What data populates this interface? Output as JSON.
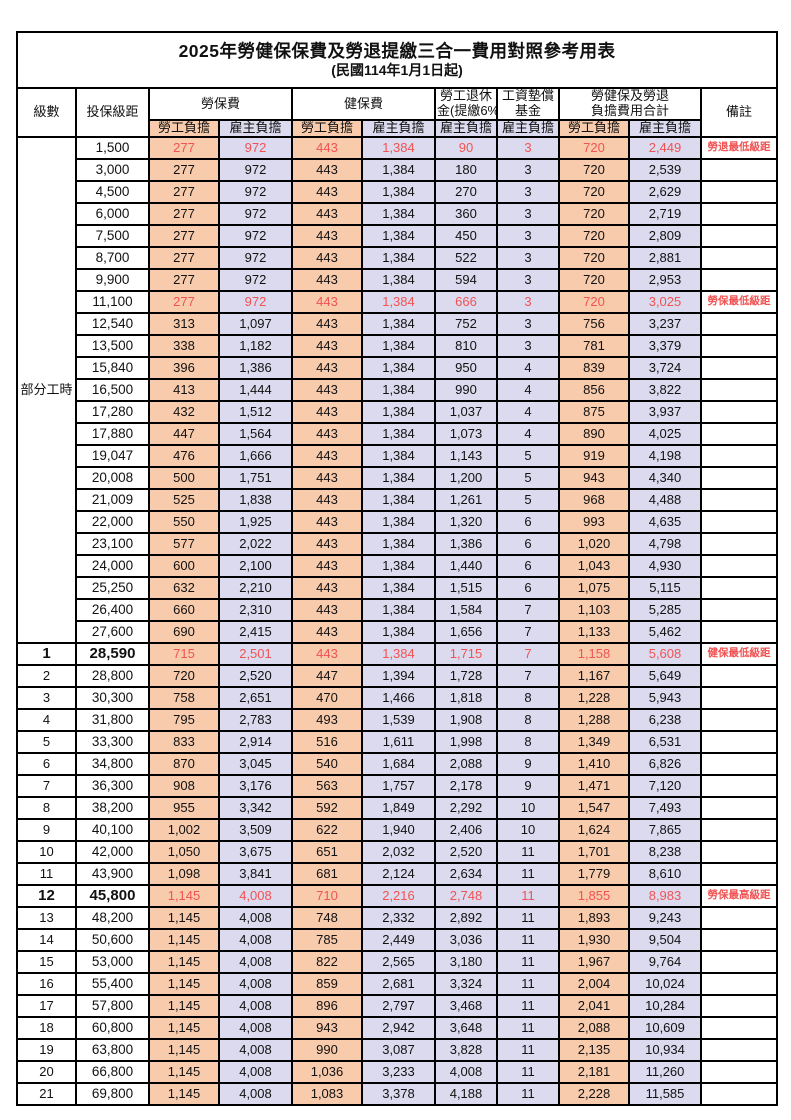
{
  "title": "2025年勞健保保費及勞退提繳三合一費用對照參考用表",
  "subtitle": "(民國114年1月1日起)",
  "colors": {
    "employee_bg": "#f8cbad",
    "employer_bg": "#dcdaee",
    "highlight_red": "#f15353",
    "border": "#000000"
  },
  "header": {
    "level": "級數",
    "bracket": "投保級距",
    "labor_insurance": "勞保費",
    "health_insurance": "健保費",
    "pension_line1": "勞工退休",
    "pension_line2": "金(提繳6%)",
    "wage_fund_line1": "工資墊償",
    "wage_fund_line2": "基金",
    "total_line1": "勞健保及勞退",
    "total_line2": "負擔費用合計",
    "employee": "勞工負擔",
    "employer": "雇主負擔",
    "remarks": "備註"
  },
  "part_time": {
    "label": "部分工時",
    "rowspan": 23
  },
  "rows": [
    {
      "bracket": "1,500",
      "values": [
        "277",
        "972",
        "443",
        "1,384",
        "90",
        "3",
        "720",
        "2,449"
      ],
      "remark": "勞退最低級距",
      "red": true
    },
    {
      "bracket": "3,000",
      "values": [
        "277",
        "972",
        "443",
        "1,384",
        "180",
        "3",
        "720",
        "2,539"
      ],
      "remark": ""
    },
    {
      "bracket": "4,500",
      "values": [
        "277",
        "972",
        "443",
        "1,384",
        "270",
        "3",
        "720",
        "2,629"
      ],
      "remark": ""
    },
    {
      "bracket": "6,000",
      "values": [
        "277",
        "972",
        "443",
        "1,384",
        "360",
        "3",
        "720",
        "2,719"
      ],
      "remark": ""
    },
    {
      "bracket": "7,500",
      "values": [
        "277",
        "972",
        "443",
        "1,384",
        "450",
        "3",
        "720",
        "2,809"
      ],
      "remark": ""
    },
    {
      "bracket": "8,700",
      "values": [
        "277",
        "972",
        "443",
        "1,384",
        "522",
        "3",
        "720",
        "2,881"
      ],
      "remark": ""
    },
    {
      "bracket": "9,900",
      "values": [
        "277",
        "972",
        "443",
        "1,384",
        "594",
        "3",
        "720",
        "2,953"
      ],
      "remark": ""
    },
    {
      "bracket": "11,100",
      "values": [
        "277",
        "972",
        "443",
        "1,384",
        "666",
        "3",
        "720",
        "3,025"
      ],
      "remark": "勞保最低級距",
      "red": true
    },
    {
      "bracket": "12,540",
      "values": [
        "313",
        "1,097",
        "443",
        "1,384",
        "752",
        "3",
        "756",
        "3,237"
      ],
      "remark": ""
    },
    {
      "bracket": "13,500",
      "values": [
        "338",
        "1,182",
        "443",
        "1,384",
        "810",
        "3",
        "781",
        "3,379"
      ],
      "remark": ""
    },
    {
      "bracket": "15,840",
      "values": [
        "396",
        "1,386",
        "443",
        "1,384",
        "950",
        "4",
        "839",
        "3,724"
      ],
      "remark": ""
    },
    {
      "bracket": "16,500",
      "values": [
        "413",
        "1,444",
        "443",
        "1,384",
        "990",
        "4",
        "856",
        "3,822"
      ],
      "remark": ""
    },
    {
      "bracket": "17,280",
      "values": [
        "432",
        "1,512",
        "443",
        "1,384",
        "1,037",
        "4",
        "875",
        "3,937"
      ],
      "remark": ""
    },
    {
      "bracket": "17,880",
      "values": [
        "447",
        "1,564",
        "443",
        "1,384",
        "1,073",
        "4",
        "890",
        "4,025"
      ],
      "remark": ""
    },
    {
      "bracket": "19,047",
      "values": [
        "476",
        "1,666",
        "443",
        "1,384",
        "1,143",
        "5",
        "919",
        "4,198"
      ],
      "remark": ""
    },
    {
      "bracket": "20,008",
      "values": [
        "500",
        "1,751",
        "443",
        "1,384",
        "1,200",
        "5",
        "943",
        "4,340"
      ],
      "remark": ""
    },
    {
      "bracket": "21,009",
      "values": [
        "525",
        "1,838",
        "443",
        "1,384",
        "1,261",
        "5",
        "968",
        "4,488"
      ],
      "remark": ""
    },
    {
      "bracket": "22,000",
      "values": [
        "550",
        "1,925",
        "443",
        "1,384",
        "1,320",
        "6",
        "993",
        "4,635"
      ],
      "remark": ""
    },
    {
      "bracket": "23,100",
      "values": [
        "577",
        "2,022",
        "443",
        "1,384",
        "1,386",
        "6",
        "1,020",
        "4,798"
      ],
      "remark": ""
    },
    {
      "bracket": "24,000",
      "values": [
        "600",
        "2,100",
        "443",
        "1,384",
        "1,440",
        "6",
        "1,043",
        "4,930"
      ],
      "remark": ""
    },
    {
      "bracket": "25,250",
      "values": [
        "632",
        "2,210",
        "443",
        "1,384",
        "1,515",
        "6",
        "1,075",
        "5,115"
      ],
      "remark": ""
    },
    {
      "bracket": "26,400",
      "values": [
        "660",
        "2,310",
        "443",
        "1,384",
        "1,584",
        "7",
        "1,103",
        "5,285"
      ],
      "remark": ""
    },
    {
      "bracket": "27,600",
      "values": [
        "690",
        "2,415",
        "443",
        "1,384",
        "1,656",
        "7",
        "1,133",
        "5,462"
      ],
      "remark": ""
    },
    {
      "level": "1",
      "bracket": "28,590",
      "values": [
        "715",
        "2,501",
        "443",
        "1,384",
        "1,715",
        "7",
        "1,158",
        "5,608"
      ],
      "remark": "健保最低級距",
      "red": true,
      "bold": true
    },
    {
      "level": "2",
      "bracket": "28,800",
      "values": [
        "720",
        "2,520",
        "447",
        "1,394",
        "1,728",
        "7",
        "1,167",
        "5,649"
      ],
      "remark": ""
    },
    {
      "level": "3",
      "bracket": "30,300",
      "values": [
        "758",
        "2,651",
        "470",
        "1,466",
        "1,818",
        "8",
        "1,228",
        "5,943"
      ],
      "remark": ""
    },
    {
      "level": "4",
      "bracket": "31,800",
      "values": [
        "795",
        "2,783",
        "493",
        "1,539",
        "1,908",
        "8",
        "1,288",
        "6,238"
      ],
      "remark": ""
    },
    {
      "level": "5",
      "bracket": "33,300",
      "values": [
        "833",
        "2,914",
        "516",
        "1,611",
        "1,998",
        "8",
        "1,349",
        "6,531"
      ],
      "remark": ""
    },
    {
      "level": "6",
      "bracket": "34,800",
      "values": [
        "870",
        "3,045",
        "540",
        "1,684",
        "2,088",
        "9",
        "1,410",
        "6,826"
      ],
      "remark": ""
    },
    {
      "level": "7",
      "bracket": "36,300",
      "values": [
        "908",
        "3,176",
        "563",
        "1,757",
        "2,178",
        "9",
        "1,471",
        "7,120"
      ],
      "remark": ""
    },
    {
      "level": "8",
      "bracket": "38,200",
      "values": [
        "955",
        "3,342",
        "592",
        "1,849",
        "2,292",
        "10",
        "1,547",
        "7,493"
      ],
      "remark": ""
    },
    {
      "level": "9",
      "bracket": "40,100",
      "values": [
        "1,002",
        "3,509",
        "622",
        "1,940",
        "2,406",
        "10",
        "1,624",
        "7,865"
      ],
      "remark": ""
    },
    {
      "level": "10",
      "bracket": "42,000",
      "values": [
        "1,050",
        "3,675",
        "651",
        "2,032",
        "2,520",
        "11",
        "1,701",
        "8,238"
      ],
      "remark": ""
    },
    {
      "level": "11",
      "bracket": "43,900",
      "values": [
        "1,098",
        "3,841",
        "681",
        "2,124",
        "2,634",
        "11",
        "1,779",
        "8,610"
      ],
      "remark": ""
    },
    {
      "level": "12",
      "bracket": "45,800",
      "values": [
        "1,145",
        "4,008",
        "710",
        "2,216",
        "2,748",
        "11",
        "1,855",
        "8,983"
      ],
      "remark": "勞保最高級距",
      "red": true,
      "bold": true
    },
    {
      "level": "13",
      "bracket": "48,200",
      "values": [
        "1,145",
        "4,008",
        "748",
        "2,332",
        "2,892",
        "11",
        "1,893",
        "9,243"
      ],
      "remark": ""
    },
    {
      "level": "14",
      "bracket": "50,600",
      "values": [
        "1,145",
        "4,008",
        "785",
        "2,449",
        "3,036",
        "11",
        "1,930",
        "9,504"
      ],
      "remark": ""
    },
    {
      "level": "15",
      "bracket": "53,000",
      "values": [
        "1,145",
        "4,008",
        "822",
        "2,565",
        "3,180",
        "11",
        "1,967",
        "9,764"
      ],
      "remark": ""
    },
    {
      "level": "16",
      "bracket": "55,400",
      "values": [
        "1,145",
        "4,008",
        "859",
        "2,681",
        "3,324",
        "11",
        "2,004",
        "10,024"
      ],
      "remark": ""
    },
    {
      "level": "17",
      "bracket": "57,800",
      "values": [
        "1,145",
        "4,008",
        "896",
        "2,797",
        "3,468",
        "11",
        "2,041",
        "10,284"
      ],
      "remark": ""
    },
    {
      "level": "18",
      "bracket": "60,800",
      "values": [
        "1,145",
        "4,008",
        "943",
        "2,942",
        "3,648",
        "11",
        "2,088",
        "10,609"
      ],
      "remark": ""
    },
    {
      "level": "19",
      "bracket": "63,800",
      "values": [
        "1,145",
        "4,008",
        "990",
        "3,087",
        "3,828",
        "11",
        "2,135",
        "10,934"
      ],
      "remark": ""
    },
    {
      "level": "20",
      "bracket": "66,800",
      "values": [
        "1,145",
        "4,008",
        "1,036",
        "3,233",
        "4,008",
        "11",
        "2,181",
        "11,260"
      ],
      "remark": ""
    },
    {
      "level": "21",
      "bracket": "69,800",
      "values": [
        "1,145",
        "4,008",
        "1,083",
        "3,378",
        "4,188",
        "11",
        "2,228",
        "11,585"
      ],
      "remark": ""
    }
  ]
}
